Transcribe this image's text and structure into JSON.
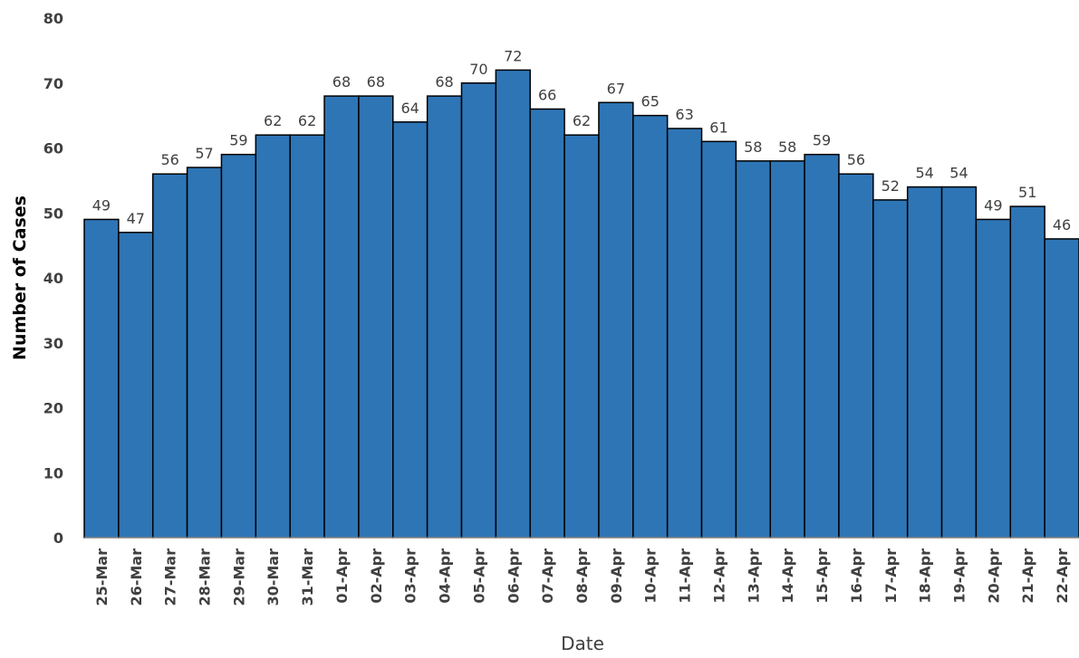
{
  "chart_data": {
    "type": "bar",
    "categories": [
      "25-Mar",
      "26-Mar",
      "27-Mar",
      "28-Mar",
      "29-Mar",
      "30-Mar",
      "31-Mar",
      "01-Apr",
      "02-Apr",
      "03-Apr",
      "04-Apr",
      "05-Apr",
      "06-Apr",
      "07-Apr",
      "08-Apr",
      "09-Apr",
      "10-Apr",
      "11-Apr",
      "12-Apr",
      "13-Apr",
      "14-Apr",
      "15-Apr",
      "16-Apr",
      "17-Apr",
      "18-Apr",
      "19-Apr",
      "20-Apr",
      "21-Apr",
      "22-Apr"
    ],
    "values": [
      49,
      47,
      56,
      57,
      59,
      62,
      62,
      68,
      68,
      64,
      68,
      70,
      72,
      66,
      62,
      67,
      65,
      63,
      61,
      58,
      58,
      59,
      56,
      52,
      54,
      54,
      49,
      51,
      46
    ],
    "xlabel": "Date",
    "ylabel": "Number of Cases",
    "ylim": [
      0,
      80
    ],
    "yticks": [
      0,
      10,
      20,
      30,
      40,
      50,
      60,
      70,
      80
    ],
    "grid": false,
    "colors": {
      "bar_fill": "#2e75b6",
      "bar_stroke": "#000000",
      "axis": "#bfbfbf",
      "text": "#404040"
    }
  }
}
